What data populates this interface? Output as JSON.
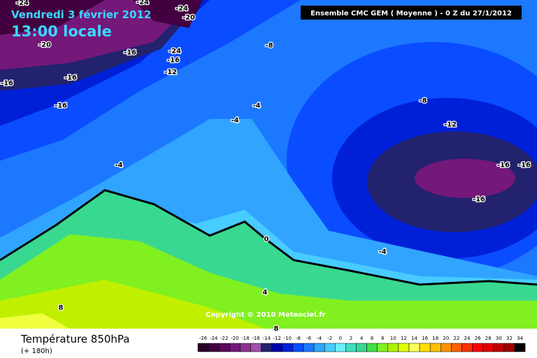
{
  "header": {
    "date": "Vendredi 3 février 2012",
    "time": "13:00 locale",
    "model": "Ensemble CMC GEM ( Moyenne )  -  0 Z du 27/1/2012"
  },
  "map": {
    "copyright": "Copyright © 2010 Meteociel.fr",
    "contour_labels": [
      -24,
      -24,
      -24,
      -20,
      -20,
      -16,
      -24,
      -16,
      -12,
      -8,
      -16,
      -16,
      -16,
      -4,
      -4,
      -8,
      -12,
      -4,
      -16,
      -16,
      -16,
      0,
      -4,
      4,
      8,
      8
    ]
  },
  "footer": {
    "title": "Température 850hPa",
    "lead": "(+ 180h)"
  },
  "legend": {
    "values": [
      -26,
      -24,
      -22,
      -20,
      -18,
      -16,
      -14,
      -12,
      -10,
      -8,
      -6,
      -4,
      -2,
      0,
      2,
      4,
      6,
      8,
      10,
      12,
      14,
      16,
      18,
      20,
      22,
      24,
      26,
      28,
      30,
      32,
      34
    ],
    "colors": [
      "#2a0028",
      "#420040",
      "#5a0a58",
      "#74187a",
      "#8c3090",
      "#a050a8",
      "#22226e",
      "#0000a8",
      "#0020d8",
      "#0a4cff",
      "#1c78ff",
      "#30a4ff",
      "#48cbff",
      "#6cf0ff",
      "#40e0c0",
      "#38d890",
      "#40e048",
      "#80f020",
      "#b0f000",
      "#e0ff00",
      "#ffff60",
      "#ffe000",
      "#ffc000",
      "#ff9000",
      "#ff6000",
      "#ff3000",
      "#ff0000",
      "#e00000",
      "#c00000",
      "#a00000",
      "#000000"
    ]
  }
}
